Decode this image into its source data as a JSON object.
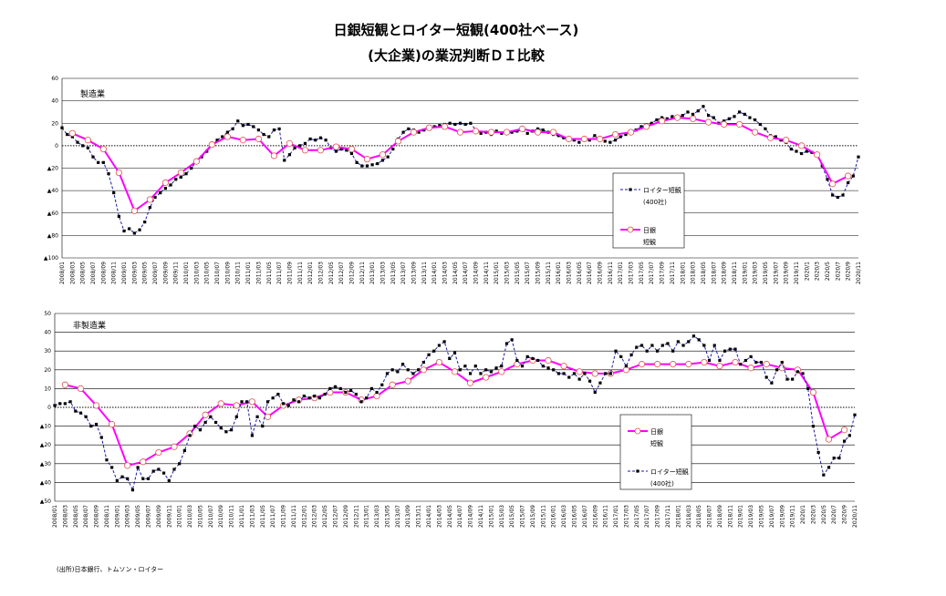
{
  "title": [
    "日銀短観とロイター短観(400社ベース)",
    "(大企業)の業況判断ＤＩ比較"
  ],
  "source": "(出所)日本銀行、トムソン・ロイター",
  "chart_data": [
    {
      "type": "line",
      "panel_label": "製造業",
      "categories": [
        "2008/01",
        null,
        "2008/03",
        null,
        "2008/05",
        null,
        "2008/07",
        null,
        "2008/09",
        null,
        "2008/11",
        null,
        "2009/01",
        null,
        "2009/03",
        null,
        "2009/05",
        null,
        "2009/07",
        null,
        "2009/09",
        null,
        "2009/11",
        null,
        "2010/01",
        null,
        "2010/03",
        null,
        "2010/05",
        null,
        "2010/07",
        null,
        "2010/09",
        null,
        "2010/11",
        null,
        "2011/01",
        null,
        "2011/03",
        null,
        "2011/05",
        null,
        "2011/07",
        null,
        "2011/09",
        null,
        "2011/11",
        null,
        "2012/01",
        null,
        "2012/03",
        null,
        "2012/05",
        null,
        "2012/07",
        null,
        "2012/09",
        null,
        "2012/11",
        null,
        "2013/01",
        null,
        "2013/03",
        null,
        "2013/05",
        null,
        "2013/07",
        null,
        "2013/09",
        null,
        "2013/11",
        null,
        "2014/01",
        null,
        "2014/03",
        null,
        "2014/05",
        null,
        "2014/07",
        null,
        "2014/09",
        null,
        "2014/11",
        null,
        "2015/01",
        null,
        "2015/03",
        null,
        "2015/05",
        null,
        "2015/07",
        null,
        "2015/09",
        null,
        "2015/11",
        null,
        "2016/01",
        null,
        "2016/03",
        null,
        "2016/05",
        null,
        "2016/07",
        null,
        "2016/09",
        null,
        "2016/11",
        null,
        "2017/01",
        null,
        "2017/03",
        null,
        "2017/05",
        null,
        "2017/07",
        null,
        "2017/09",
        null,
        "2017/11",
        null,
        "2018/01",
        null,
        "2018/03",
        null,
        "2018/05",
        null,
        "2018/07",
        null,
        "2018/09",
        null,
        "2018/11",
        null,
        "2019/01",
        null,
        "2019/03",
        null,
        "2019/05",
        null,
        "2019/07",
        null,
        "2019/09",
        null,
        "2019/11",
        null,
        "2020/1",
        null,
        "2020/3",
        null,
        "2020/5",
        null,
        "2020/7",
        null,
        "2020/9",
        null,
        "2020/11"
      ],
      "ylim": [
        -100,
        60
      ],
      "yticks": [
        {
          "value": -100,
          "label": "▲100"
        },
        {
          "value": -80,
          "label": "▲80"
        },
        {
          "value": -60,
          "label": "▲60"
        },
        {
          "value": -40,
          "label": "▲40"
        },
        {
          "value": -20,
          "label": "▲20"
        },
        0,
        20,
        40,
        60
      ],
      "grid": true,
      "series": [
        {
          "name": [
            "ロイター短観",
            "(400社)"
          ],
          "color": "#1a1aa6",
          "marker_color": "#000000",
          "dashed": true,
          "values": [
            16,
            10,
            8,
            3,
            0,
            -2,
            -10,
            -15,
            -15,
            -25,
            -42,
            -63,
            -76,
            -74,
            -78,
            -75,
            -68,
            -55,
            -46,
            -42,
            -38,
            -35,
            -30,
            -28,
            -25,
            -20,
            -14,
            -10,
            -5,
            0,
            5,
            8,
            12,
            15,
            22,
            18,
            19,
            17,
            14,
            10,
            8,
            14,
            15,
            -13,
            -8,
            -2,
            0,
            2,
            6,
            5,
            7,
            5,
            -2,
            -5,
            -3,
            -4,
            -7,
            -15,
            -18,
            -18,
            -17,
            -16,
            -13,
            -10,
            -3,
            6,
            12,
            15,
            14,
            12,
            14,
            16,
            17,
            18,
            19,
            20,
            19,
            20,
            19,
            20,
            14,
            11,
            12,
            10,
            13,
            11,
            11,
            12,
            13,
            14,
            11,
            13,
            15,
            14,
            12,
            10,
            9,
            7,
            6,
            5,
            3,
            7,
            5,
            9,
            5,
            4,
            3,
            5,
            8,
            10,
            12,
            14,
            17,
            18,
            20,
            23,
            25,
            24,
            26,
            25,
            27,
            30,
            28,
            31,
            35,
            27,
            25,
            20,
            22,
            24,
            26,
            30,
            28,
            25,
            23,
            19,
            15,
            9,
            8,
            5,
            3,
            -3,
            -5,
            -7,
            -5,
            -6,
            -8,
            -18,
            -30,
            -44,
            -46,
            -44,
            -33,
            -27,
            -10
          ]
        },
        {
          "name": [
            "日銀",
            "短観"
          ],
          "color": "#ff00ff",
          "marker_color": "#e05050",
          "x": [
            "2008/03",
            "2008/06",
            "2008/09",
            "2008/12",
            "2009/03",
            "2009/06",
            "2009/09",
            "2009/12",
            "2010/03",
            "2010/06",
            "2010/09",
            "2010/12",
            "2011/03",
            "2011/06",
            "2011/09",
            "2011/12",
            "2012/03",
            "2012/06",
            "2012/09",
            "2012/12",
            "2013/03",
            "2013/06",
            "2013/09",
            "2013/12",
            "2014/03",
            "2014/06",
            "2014/09",
            "2014/12",
            "2015/03",
            "2015/06",
            "2015/09",
            "2015/12",
            "2016/03",
            "2016/06",
            "2016/09",
            "2016/12",
            "2017/03",
            "2017/06",
            "2017/09",
            "2017/12",
            "2018/03",
            "2018/06",
            "2018/09",
            "2018/12",
            "2019/03",
            "2019/06",
            "2019/09",
            "2019/12",
            "2020/03",
            "2020/06",
            "2020/09"
          ],
          "values": [
            11,
            5,
            -3,
            -24,
            -58,
            -48,
            -33,
            -24,
            -14,
            1,
            8,
            5,
            6,
            -9,
            2,
            -4,
            -4,
            -1,
            -3,
            -12,
            -8,
            4,
            12,
            16,
            17,
            12,
            13,
            12,
            12,
            15,
            12,
            12,
            6,
            6,
            6,
            10,
            12,
            17,
            22,
            25,
            24,
            21,
            19,
            19,
            12,
            7,
            5,
            0,
            -8,
            -34,
            -27
          ]
        }
      ]
    },
    {
      "type": "line",
      "panel_label": "非製造業",
      "categories": [
        "2008/01",
        null,
        "2008/03",
        null,
        "2008/05",
        null,
        "2008/07",
        null,
        "2008/09",
        null,
        "2008/11",
        null,
        "2009/01",
        null,
        "2009/03",
        null,
        "2009/05",
        null,
        "2009/07",
        null,
        "2009/09",
        null,
        "2009/11",
        null,
        "2010/01",
        null,
        "2010/03",
        null,
        "2010/05",
        null,
        "2010/07",
        null,
        "2010/09",
        null,
        "2010/11",
        null,
        "2011/01",
        null,
        "2011/03",
        null,
        "2011/05",
        null,
        "2011/07",
        null,
        "2011/09",
        null,
        "2011/11",
        null,
        "2012/01",
        null,
        "2012/03",
        null,
        "2012/05",
        null,
        "2012/07",
        null,
        "2012/09",
        null,
        "2012/11",
        null,
        "2013/01",
        null,
        "2013/03",
        null,
        "2013/05",
        null,
        "2013/07",
        null,
        "2013/09",
        null,
        "2013/11",
        null,
        "2014/01",
        null,
        "2014/03",
        null,
        "2014/05",
        null,
        "2014/07",
        null,
        "2014/09",
        null,
        "2014/11",
        null,
        "2015/01",
        null,
        "2015/03",
        null,
        "2015/05",
        null,
        "2015/07",
        null,
        "2015/09",
        null,
        "2015/11",
        null,
        "2016/01",
        null,
        "2016/03",
        null,
        "2016/05",
        null,
        "2016/07",
        null,
        "2016/09",
        null,
        "2016/11",
        null,
        "2017/01",
        null,
        "2017/03",
        null,
        "2017/05",
        null,
        "2017/07",
        null,
        "2017/09",
        null,
        "2017/11",
        null,
        "2018/01",
        null,
        "2018/03",
        null,
        "2018/05",
        null,
        "2018/07",
        null,
        "2018/09",
        null,
        "2018/11",
        null,
        "2019/01",
        null,
        "2019/03",
        null,
        "2019/05",
        null,
        "2019/07",
        null,
        "2019/09",
        null,
        "2019/11",
        null,
        "2020/1",
        null,
        "2020/3",
        null,
        "2020/5",
        null,
        "2020/7",
        null,
        "2020/9",
        null,
        "2020/11"
      ],
      "ylim": [
        -50,
        50
      ],
      "yticks": [
        {
          "value": -50,
          "label": "▲50"
        },
        {
          "value": -40,
          "label": "▲40"
        },
        {
          "value": -30,
          "label": "▲30"
        },
        {
          "value": -20,
          "label": "▲20"
        },
        {
          "value": -10,
          "label": "▲10"
        },
        0,
        10,
        20,
        30,
        40,
        50
      ],
      "grid": true,
      "series": [
        {
          "name": [
            "日銀",
            "短観"
          ],
          "color": "#ff00ff",
          "marker_color": "#e05050",
          "x": [
            "2008/03",
            "2008/06",
            "2008/09",
            "2008/12",
            "2009/03",
            "2009/06",
            "2009/09",
            "2009/12",
            "2010/03",
            "2010/06",
            "2010/09",
            "2010/12",
            "2011/03",
            "2011/06",
            "2011/09",
            "2011/12",
            "2012/03",
            "2012/06",
            "2012/09",
            "2012/12",
            "2013/03",
            "2013/06",
            "2013/09",
            "2013/12",
            "2014/03",
            "2014/06",
            "2014/09",
            "2014/12",
            "2015/03",
            "2015/06",
            "2015/09",
            "2015/12",
            "2016/03",
            "2016/06",
            "2016/09",
            "2016/12",
            "2017/03",
            "2017/06",
            "2017/09",
            "2017/12",
            "2018/03",
            "2018/06",
            "2018/09",
            "2018/12",
            "2019/03",
            "2019/06",
            "2019/09",
            "2019/12",
            "2020/03",
            "2020/06",
            "2020/09"
          ],
          "values": [
            12,
            10,
            1,
            -9,
            -31,
            -29,
            -24,
            -21,
            -14,
            -4,
            2,
            1,
            3,
            -5,
            1,
            4,
            5,
            8,
            8,
            4,
            6,
            12,
            14,
            20,
            24,
            19,
            13,
            16,
            19,
            23,
            25,
            25,
            22,
            19,
            18,
            18,
            20,
            23,
            23,
            23,
            23,
            24,
            22,
            24,
            21,
            23,
            21,
            20,
            8,
            -17,
            -12
          ]
        },
        {
          "name": [
            "ロイター短観",
            "(400社)"
          ],
          "color": "#1a1aa6",
          "marker_color": "#000000",
          "dashed": true,
          "values": [
            1,
            2,
            2,
            3,
            -2,
            -3,
            -5,
            -10,
            -9,
            -16,
            -28,
            -32,
            -39,
            -37,
            -38,
            -44,
            -32,
            -38,
            -38,
            -34,
            -33,
            -35,
            -39,
            -33,
            -30,
            -23,
            -15,
            -10,
            -12,
            -8,
            -5,
            -8,
            -11,
            -13,
            -12,
            -5,
            3,
            3,
            -15,
            -5,
            -10,
            3,
            5,
            7,
            2,
            1,
            4,
            3,
            6,
            5,
            6,
            5,
            7,
            10,
            11,
            10,
            8,
            9,
            7,
            3,
            5,
            10,
            8,
            12,
            18,
            20,
            19,
            23,
            20,
            18,
            20,
            24,
            28,
            30,
            33,
            35,
            26,
            29,
            20,
            22,
            18,
            22,
            18,
            20,
            19,
            21,
            22,
            34,
            36,
            25,
            22,
            27,
            26,
            25,
            22,
            21,
            20,
            18,
            18,
            16,
            18,
            15,
            18,
            14,
            8,
            13,
            18,
            18,
            30,
            27,
            22,
            28,
            32,
            33,
            30,
            33,
            30,
            33,
            34,
            30,
            35,
            33,
            35,
            38,
            36,
            33,
            25,
            33,
            25,
            30,
            31,
            31,
            23,
            25,
            27,
            24,
            24,
            16,
            13,
            20,
            24,
            15,
            15,
            19,
            18,
            10,
            -10,
            -24,
            -36,
            -32,
            -27,
            -27,
            -18,
            -15,
            -4
          ]
        }
      ]
    }
  ]
}
